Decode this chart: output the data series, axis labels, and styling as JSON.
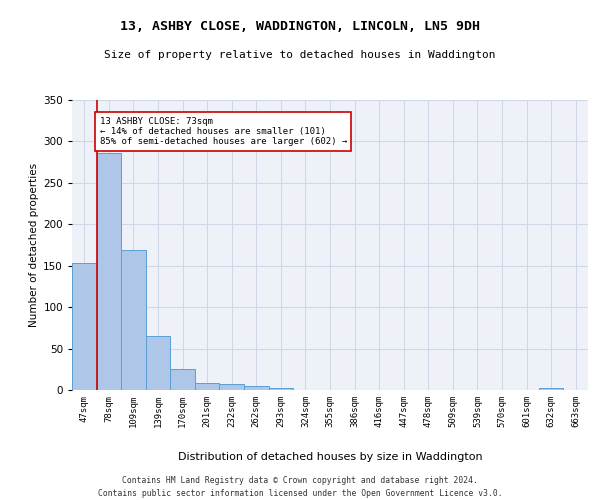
{
  "title": "13, ASHBY CLOSE, WADDINGTON, LINCOLN, LN5 9DH",
  "subtitle": "Size of property relative to detached houses in Waddington",
  "xlabel": "Distribution of detached houses by size in Waddington",
  "ylabel": "Number of detached properties",
  "categories": [
    "47sqm",
    "78sqm",
    "109sqm",
    "139sqm",
    "170sqm",
    "201sqm",
    "232sqm",
    "262sqm",
    "293sqm",
    "324sqm",
    "355sqm",
    "386sqm",
    "416sqm",
    "447sqm",
    "478sqm",
    "509sqm",
    "539sqm",
    "570sqm",
    "601sqm",
    "632sqm",
    "663sqm"
  ],
  "values": [
    153,
    286,
    169,
    65,
    25,
    9,
    7,
    5,
    3,
    0,
    0,
    0,
    0,
    0,
    0,
    0,
    0,
    0,
    0,
    3,
    0
  ],
  "bar_color": "#aec6e8",
  "bar_edge_color": "#5a9fd4",
  "marker_color": "#cc0000",
  "annotation_text": "13 ASHBY CLOSE: 73sqm\n← 14% of detached houses are smaller (101)\n85% of semi-detached houses are larger (602) →",
  "annotation_box_color": "#ffffff",
  "annotation_box_edge": "#cc0000",
  "ylim": [
    0,
    350
  ],
  "yticks": [
    0,
    50,
    100,
    150,
    200,
    250,
    300,
    350
  ],
  "grid_color": "#d0d8e8",
  "bg_color": "#eef2f8",
  "footer1": "Contains HM Land Registry data © Crown copyright and database right 2024.",
  "footer2": "Contains public sector information licensed under the Open Government Licence v3.0."
}
